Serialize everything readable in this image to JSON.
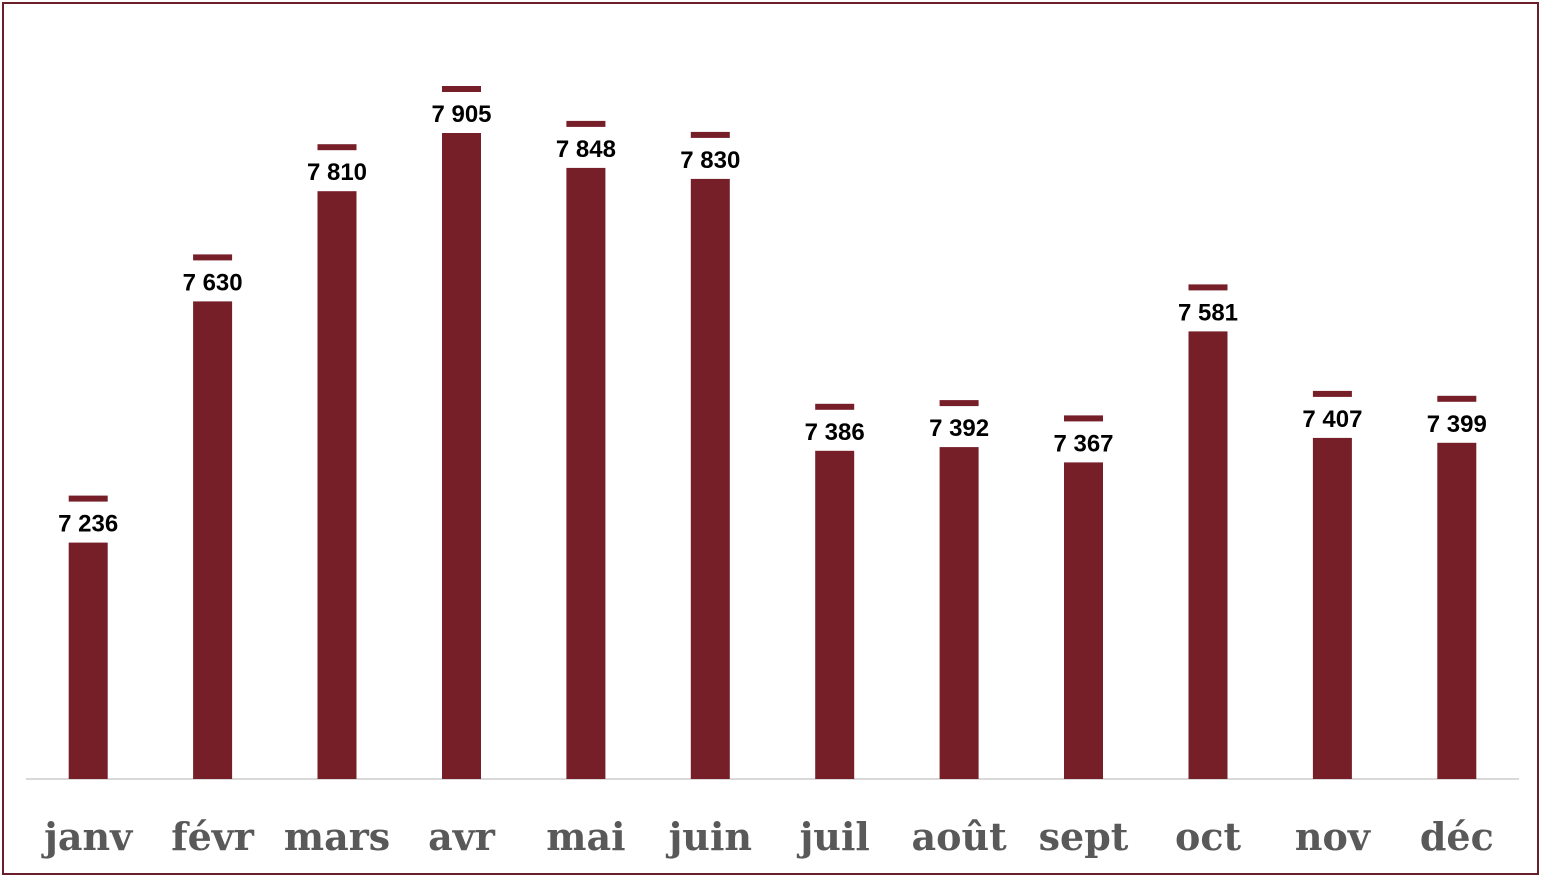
{
  "chart_data": {
    "type": "bar",
    "categories": [
      "janv",
      "févr",
      "mars",
      "avr",
      "mai",
      "juin",
      "juil",
      "août",
      "sept",
      "oct",
      "nov",
      "déc"
    ],
    "series": [
      {
        "values": [
          7236,
          7630,
          7810,
          7905,
          7848,
          7830,
          7386,
          7392,
          7367,
          7581,
          7407,
          7399
        ],
        "value_labels": [
          "7 236",
          "7 630",
          "7 810",
          "7 905",
          "7 848",
          "7 830",
          "7 386",
          "7 392",
          "7 367",
          "7 581",
          "7 407",
          "7 399"
        ]
      }
    ],
    "ylim": [
      6850,
      7905
    ],
    "grid": false,
    "legend": "none",
    "title": "",
    "xlabel": "",
    "ylabel": ""
  },
  "colors": {
    "bar": "#761f29",
    "frame": "#6b1f2a",
    "axis": "#d9d9d9",
    "category_text": "#595959",
    "value_text": "#000000"
  }
}
